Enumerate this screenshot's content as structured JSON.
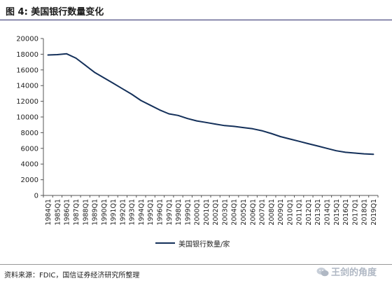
{
  "figure": {
    "title": "图 4:  美国银行数量变化",
    "source": "资料来源：FDIC，国信证券经济研究所整理",
    "watermark": "王剑的角度",
    "watermark_icon": "wechat-icon"
  },
  "colors": {
    "line": "#14305a",
    "axis": "#555555",
    "title_rule": "#2b2b6b"
  },
  "chart_data": {
    "type": "line",
    "title": "",
    "xlabel": "",
    "ylabel": "",
    "ylim": [
      0,
      20000
    ],
    "yticks": [
      0,
      2000,
      4000,
      6000,
      8000,
      10000,
      12000,
      14000,
      16000,
      18000,
      20000
    ],
    "categories": [
      "1984Q1",
      "1985Q1",
      "1986Q1",
      "1987Q1",
      "1988Q1",
      "1989Q1",
      "1990Q1",
      "1991Q1",
      "1992Q1",
      "1993Q1",
      "1994Q1",
      "1995Q1",
      "1996Q1",
      "1997Q1",
      "1998Q1",
      "1999Q1",
      "2000Q1",
      "2001Q1",
      "2002Q1",
      "2003Q1",
      "2004Q1",
      "2005Q1",
      "2006Q1",
      "2007Q1",
      "2008Q1",
      "2009Q1",
      "2010Q1",
      "2011Q1",
      "2012Q1",
      "2013Q1",
      "2014Q1",
      "2015Q1",
      "2016Q1",
      "2017Q1",
      "2018Q1",
      "2019Q1"
    ],
    "grid": false,
    "legend_position": "bottom-center",
    "series": [
      {
        "name": "美国银行数量/家",
        "values": [
          17900,
          17950,
          18050,
          17500,
          16600,
          15700,
          15000,
          14300,
          13600,
          12900,
          12100,
          11500,
          10900,
          10400,
          10200,
          9800,
          9500,
          9300,
          9100,
          8900,
          8800,
          8650,
          8500,
          8250,
          7900,
          7500,
          7200,
          6900,
          6600,
          6300,
          6000,
          5700,
          5500,
          5400,
          5300,
          5250
        ]
      }
    ]
  }
}
